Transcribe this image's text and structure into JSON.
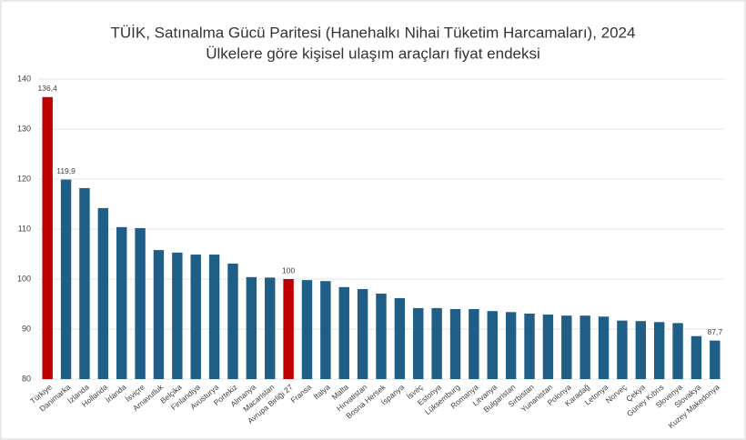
{
  "chart_data": {
    "type": "bar",
    "title": "TÜİK, Satınalma Gücü Paritesi (Hanehalkı Nihai Tüketim Harcamaları), 2024",
    "subtitle": "Ülkelere göre kişisel ulaşım araçları fiyat endeksi",
    "categories": [
      "Türkiye",
      "Danimarka",
      "İzlanda",
      "Hollanda",
      "İrlanda",
      "İsviçre",
      "Arnavutluk",
      "Belçika",
      "Finlandiya",
      "Avusturya",
      "Portekiz",
      "Almanya",
      "Macaristan",
      "Avrupa Birliği 27",
      "Fransa",
      "İtalya",
      "Malta",
      "Hırvatistan",
      "Bosna Hersek",
      "İspanya",
      "İsveç",
      "Estonya",
      "Lüksemburg",
      "Romanya",
      "Litvanya",
      "Bulgaristan",
      "Sırbistan",
      "Yunanistan",
      "Polonya",
      "Karadağ",
      "Letonya",
      "Norveç",
      "Çekya",
      "Güney Kıbrıs",
      "Slovenya",
      "Slovakya",
      "Kuzey Makedonya"
    ],
    "values": [
      136.4,
      119.9,
      118.2,
      114.2,
      110.4,
      110.2,
      105.8,
      105.3,
      104.9,
      104.9,
      103.1,
      100.4,
      100.3,
      100,
      99.8,
      99.6,
      98.4,
      98.0,
      97.1,
      96.2,
      94.2,
      94.2,
      94.0,
      94.0,
      93.6,
      93.4,
      93.1,
      92.9,
      92.7,
      92.7,
      92.5,
      91.7,
      91.6,
      91.4,
      91.2,
      88.6,
      87.7
    ],
    "value_labels": [
      "136,4",
      "119,9",
      null,
      null,
      null,
      null,
      null,
      null,
      null,
      null,
      null,
      null,
      null,
      "100",
      null,
      null,
      null,
      null,
      null,
      null,
      null,
      null,
      null,
      null,
      null,
      null,
      null,
      null,
      null,
      null,
      null,
      null,
      null,
      null,
      null,
      null,
      "87,7"
    ],
    "colors": [
      "#c00000",
      "#1f5f87",
      "#1f5f87",
      "#1f5f87",
      "#1f5f87",
      "#1f5f87",
      "#1f5f87",
      "#1f5f87",
      "#1f5f87",
      "#1f5f87",
      "#1f5f87",
      "#1f5f87",
      "#1f5f87",
      "#c00000",
      "#1f5f87",
      "#1f5f87",
      "#1f5f87",
      "#1f5f87",
      "#1f5f87",
      "#1f5f87",
      "#1f5f87",
      "#1f5f87",
      "#1f5f87",
      "#1f5f87",
      "#1f5f87",
      "#1f5f87",
      "#1f5f87",
      "#1f5f87",
      "#1f5f87",
      "#1f5f87",
      "#1f5f87",
      "#1f5f87",
      "#1f5f87",
      "#1f5f87",
      "#1f5f87",
      "#1f5f87",
      "#1f5f87"
    ],
    "ylim": [
      80,
      140
    ],
    "yticks": [
      80,
      90,
      100,
      110,
      120,
      130,
      140
    ],
    "grid": true
  }
}
